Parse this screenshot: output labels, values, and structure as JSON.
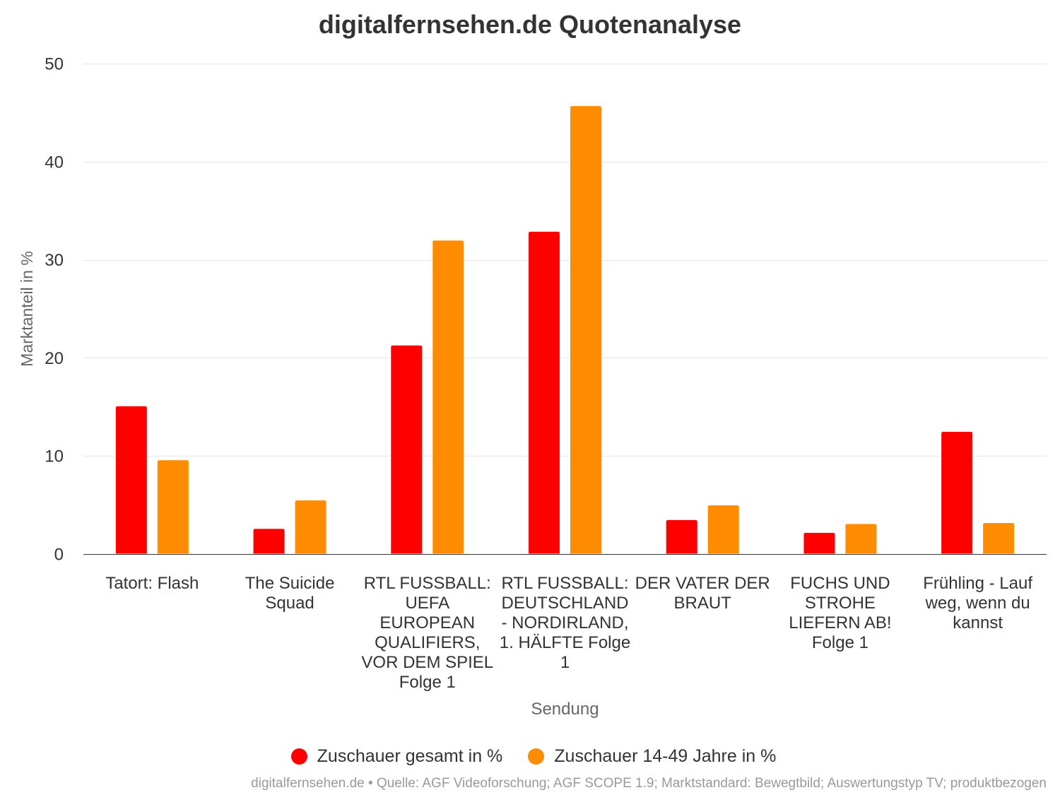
{
  "chart_data": {
    "type": "bar",
    "title": "digitalfernsehen.de Quotenanalyse",
    "xlabel": "Sendung",
    "ylabel": "Marktanteil in %",
    "ylim": [
      0,
      50
    ],
    "yticks": [
      0,
      10,
      20,
      30,
      40,
      50
    ],
    "grid": true,
    "legend": "bottom-center",
    "categories": [
      "Tatort: Flash",
      "The Suicide Squad",
      "RTL FUSSBALL: UEFA EUROPEAN QUALIFIERS, VOR DEM SPIEL Folge 1",
      "RTL FUSSBALL: DEUTSCHLAND - NORDIRLAND, 1. HÄLFTE Folge 1",
      "DER VATER DER BRAUT",
      "FUCHS UND STROHE LIEFERN AB! Folge 1",
      "Frühling - Lauf weg, wenn du kannst"
    ],
    "series": [
      {
        "name": "Zuschauer gesamt in %",
        "color": "#ff0000",
        "values": [
          15.1,
          2.6,
          21.3,
          32.9,
          3.5,
          2.2,
          12.5
        ]
      },
      {
        "name": "Zuschauer 14-49 Jahre in %",
        "color": "#ff8c00",
        "values": [
          9.6,
          5.5,
          32.0,
          45.7,
          5.0,
          3.1,
          3.2
        ]
      }
    ]
  },
  "credits": "digitalfernsehen.de • Quelle: AGF Videoforschung; AGF SCOPE 1.9; Marktstandard: Bewegtbild; Auswertungstyp TV; produktbezogen"
}
